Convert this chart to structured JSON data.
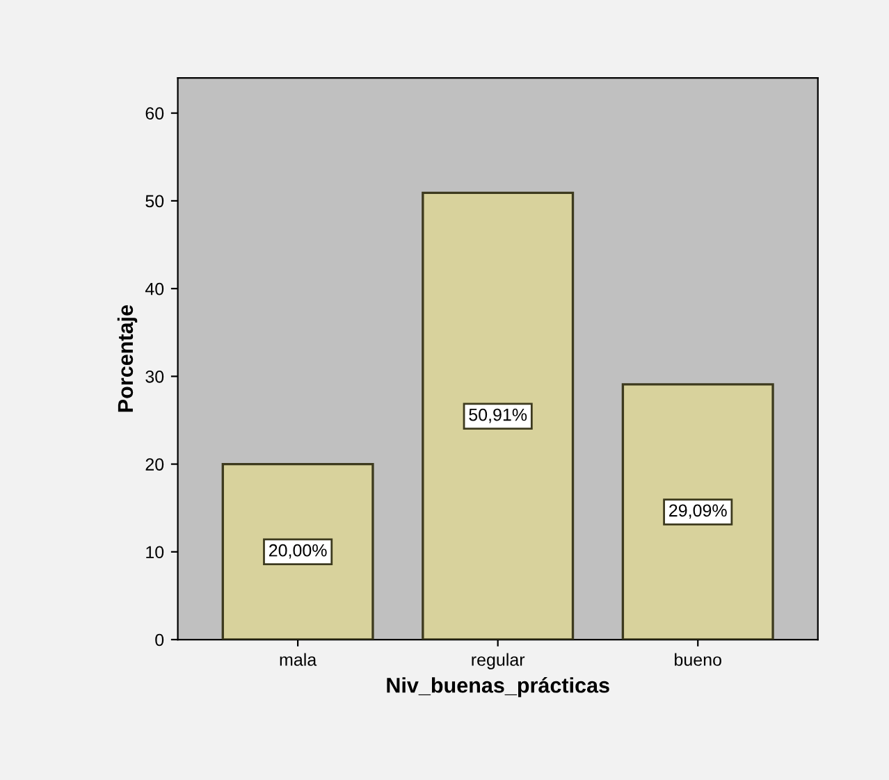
{
  "chart_data": {
    "type": "bar",
    "xlabel": "Niv_buenas_prácticas",
    "ylabel": "Porcentaje",
    "categories": [
      "mala",
      "regular",
      "bueno"
    ],
    "values": [
      20.0,
      50.91,
      29.09
    ],
    "value_labels": [
      "20,00%",
      "50,91%",
      "29,09%"
    ],
    "color": "#d8d29c",
    "ylim": [
      0,
      64
    ],
    "yticks": [
      0,
      10,
      20,
      30,
      40,
      50,
      60
    ],
    "grid": false
  }
}
